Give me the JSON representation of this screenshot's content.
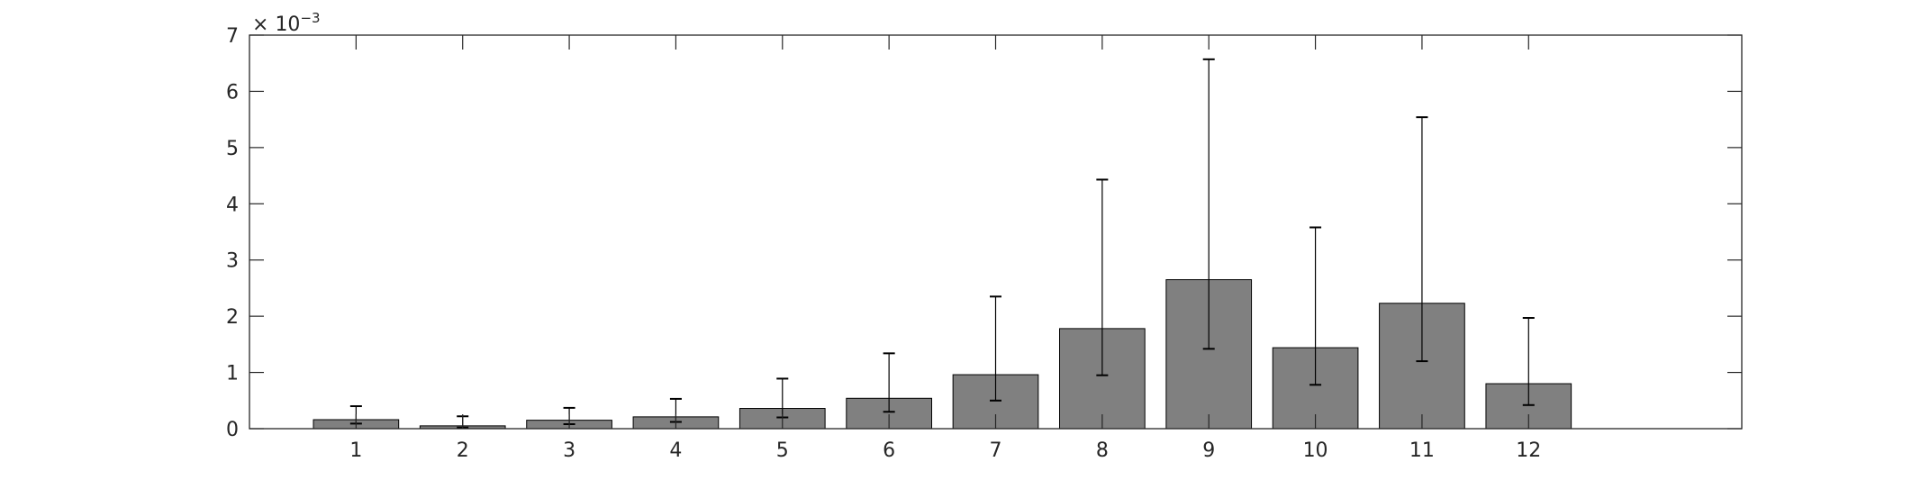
{
  "chart_data": {
    "type": "bar",
    "title": "",
    "xlabel": "",
    "ylabel": "",
    "y_exponent_base": "10",
    "y_exponent_power": "−3",
    "categories": [
      "1",
      "2",
      "3",
      "4",
      "5",
      "6",
      "7",
      "8",
      "9",
      "10",
      "11",
      "12"
    ],
    "values": [
      0.16,
      0.05,
      0.15,
      0.21,
      0.36,
      0.54,
      0.96,
      1.78,
      2.65,
      1.44,
      2.23,
      0.8
    ],
    "error_low": [
      0.09,
      0.02,
      0.08,
      0.12,
      0.2,
      0.3,
      0.5,
      0.95,
      1.42,
      0.78,
      1.2,
      0.42
    ],
    "error_high": [
      0.4,
      0.22,
      0.37,
      0.53,
      0.89,
      1.34,
      2.35,
      4.43,
      6.57,
      3.58,
      5.54,
      1.97
    ],
    "xlim": [
      0,
      14
    ],
    "ylim": [
      0,
      7
    ],
    "y_ticks": [
      "0",
      "1",
      "2",
      "3",
      "4",
      "5",
      "6",
      "7"
    ],
    "grid": false,
    "bar_color": "#808080",
    "edge_color": "#000000"
  }
}
